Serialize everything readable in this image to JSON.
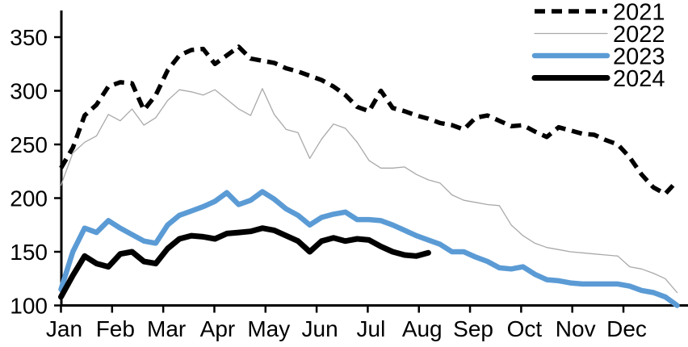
{
  "chart_data": {
    "type": "line",
    "title": "",
    "xlabel": "",
    "ylabel": "",
    "x_axis": {
      "tick_labels": [
        "Jan",
        "Feb",
        "Mar",
        "Apr",
        "May",
        "Jun",
        "Jul",
        "Aug",
        "Sep",
        "Oct",
        "Nov",
        "Dec"
      ]
    },
    "y_axis": {
      "min": 100,
      "max": 350,
      "tick_step": 50,
      "tick_labels": [
        "100",
        "150",
        "200",
        "250",
        "300",
        "350"
      ]
    },
    "grid": "off",
    "legend_position": "top-right",
    "sampling": "weekly",
    "series": [
      {
        "name": "2021",
        "style": "dashed",
        "color": "#000000",
        "width": 5.5,
        "values": [
          228,
          247,
          277,
          287,
          304,
          308,
          307,
          282,
          296,
          319,
          333,
          338,
          339,
          325,
          333,
          341,
          330,
          328,
          326,
          321,
          318,
          314,
          310,
          304,
          296,
          285,
          281,
          300,
          284,
          281,
          277,
          274,
          270,
          268,
          264,
          275,
          277,
          272,
          267,
          268,
          262,
          257,
          266,
          263,
          260,
          259,
          254,
          250,
          238,
          222,
          210,
          204,
          216
        ]
      },
      {
        "name": "2022",
        "style": "solid",
        "color": "#A9A9A9",
        "width": 1.3,
        "values": [
          212,
          242,
          252,
          258,
          278,
          272,
          283,
          268,
          275,
          291,
          301,
          299,
          296,
          301,
          292,
          283,
          277,
          302,
          278,
          264,
          261,
          237,
          255,
          269,
          265,
          252,
          235,
          228,
          228,
          229,
          222,
          217,
          214,
          203,
          198,
          196,
          194,
          193,
          175,
          165,
          158,
          154,
          152,
          150,
          149,
          148,
          147,
          146,
          136,
          134,
          130,
          125,
          112
        ]
      },
      {
        "name": "2023",
        "style": "solid",
        "color": "#5B9BD5",
        "width": 6.5,
        "values": [
          115,
          150,
          172,
          168,
          179,
          172,
          166,
          160,
          158,
          175,
          184,
          188,
          192,
          197,
          205,
          194,
          198,
          206,
          199,
          190,
          184,
          175,
          182,
          185,
          187,
          180,
          180,
          179,
          175,
          170,
          165,
          161,
          157,
          150,
          150,
          145,
          141,
          135,
          134,
          136,
          129,
          124,
          123,
          121,
          120,
          120,
          120,
          120,
          118,
          114,
          112,
          108,
          100
        ]
      },
      {
        "name": "2024",
        "style": "solid",
        "color": "#000000",
        "width": 7,
        "values": [
          108,
          128,
          146,
          139,
          136,
          148,
          150,
          141,
          139,
          153,
          162,
          165,
          164,
          162,
          167,
          168,
          169,
          172,
          170,
          165,
          160,
          150,
          160,
          163,
          160,
          162,
          161,
          155,
          150,
          147,
          146,
          149
        ]
      }
    ]
  }
}
